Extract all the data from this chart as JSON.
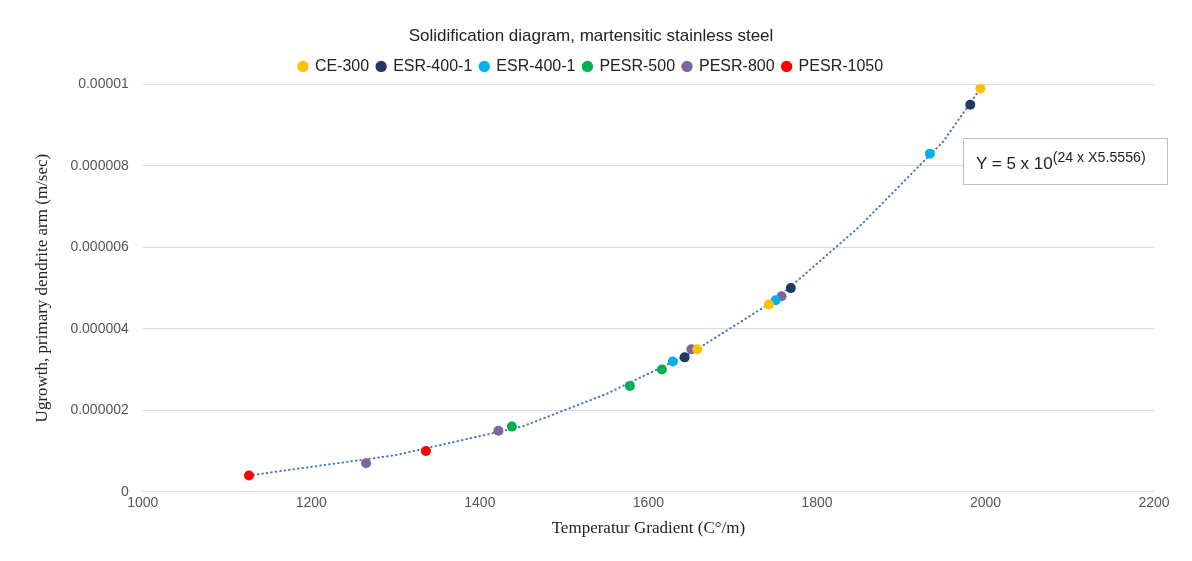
{
  "chart_data": {
    "type": "scatter",
    "title": "Solidification diagram, martensitic stainless steel",
    "xlabel": "Temperatur Gradient (C°/m)",
    "ylabel": "Ugrowth, primary dendrite arm (m/sec)",
    "series": [
      {
        "name": "CE-300",
        "color": "#ffc000",
        "x": [
          1658,
          1743,
          1994
        ],
        "values": [
          3.5e-06,
          4.6e-06,
          9.9e-06
        ]
      },
      {
        "name": "ESR-400-1",
        "color": "#1f3864",
        "x": [
          1643,
          1769,
          1982
        ],
        "values": [
          3.3e-06,
          5e-06,
          9.5e-06
        ]
      },
      {
        "name": "ESR-400-1",
        "color": "#00b0f0",
        "x": [
          1629,
          1751,
          1934
        ],
        "values": [
          3.2e-06,
          4.7e-06,
          8.3e-06
        ]
      },
      {
        "name": "PESR-500",
        "color": "#00b050",
        "x": [
          1438,
          1578,
          1616
        ],
        "values": [
          1.6e-06,
          2.6e-06,
          3e-06
        ]
      },
      {
        "name": "PESR-800",
        "color": "#8064a2",
        "x": [
          1265,
          1422,
          1651,
          1758
        ],
        "values": [
          7e-07,
          1.5e-06,
          3.5e-06,
          4.8e-06
        ]
      },
      {
        "name": "PESR-1050",
        "color": "#ff0000",
        "x": [
          1126,
          1336
        ],
        "values": [
          4e-07,
          1e-06
        ]
      },
      {
        "type": "line",
        "color": "#4472c4",
        "line_style": "dotted",
        "marker": "none",
        "x": [
          1126,
          1300,
          1450,
          1550,
          1650,
          1750,
          1850,
          1950,
          1994
        ],
        "values": [
          4e-07,
          9e-07,
          1.6e-06,
          2.4e-06,
          3.4e-06,
          4.7e-06,
          6.5e-06,
          8.6e-06,
          9.9e-06
        ]
      }
    ],
    "xlim": [
      1000,
      2200
    ],
    "xticks": [
      1000,
      1200,
      1400,
      1600,
      1800,
      2000,
      2200
    ],
    "ylim": [
      0,
      1e-05
    ],
    "yticks": [
      0,
      {
        "value": 2e-06,
        "label": "0.000002"
      },
      {
        "value": 4e-06,
        "label": "0.000004"
      },
      {
        "value": 6e-06,
        "label": "0.000006"
      },
      {
        "value": 8e-06,
        "label": "0.000008"
      },
      {
        "value": 1e-05,
        "label": "0.00001"
      }
    ],
    "grid": "y",
    "legend": "top",
    "marker": "circle",
    "annotations": [
      "Y = 5 x 10$^{(24 x X}$$^{5.5556}$$^{)}$"
    ]
  }
}
